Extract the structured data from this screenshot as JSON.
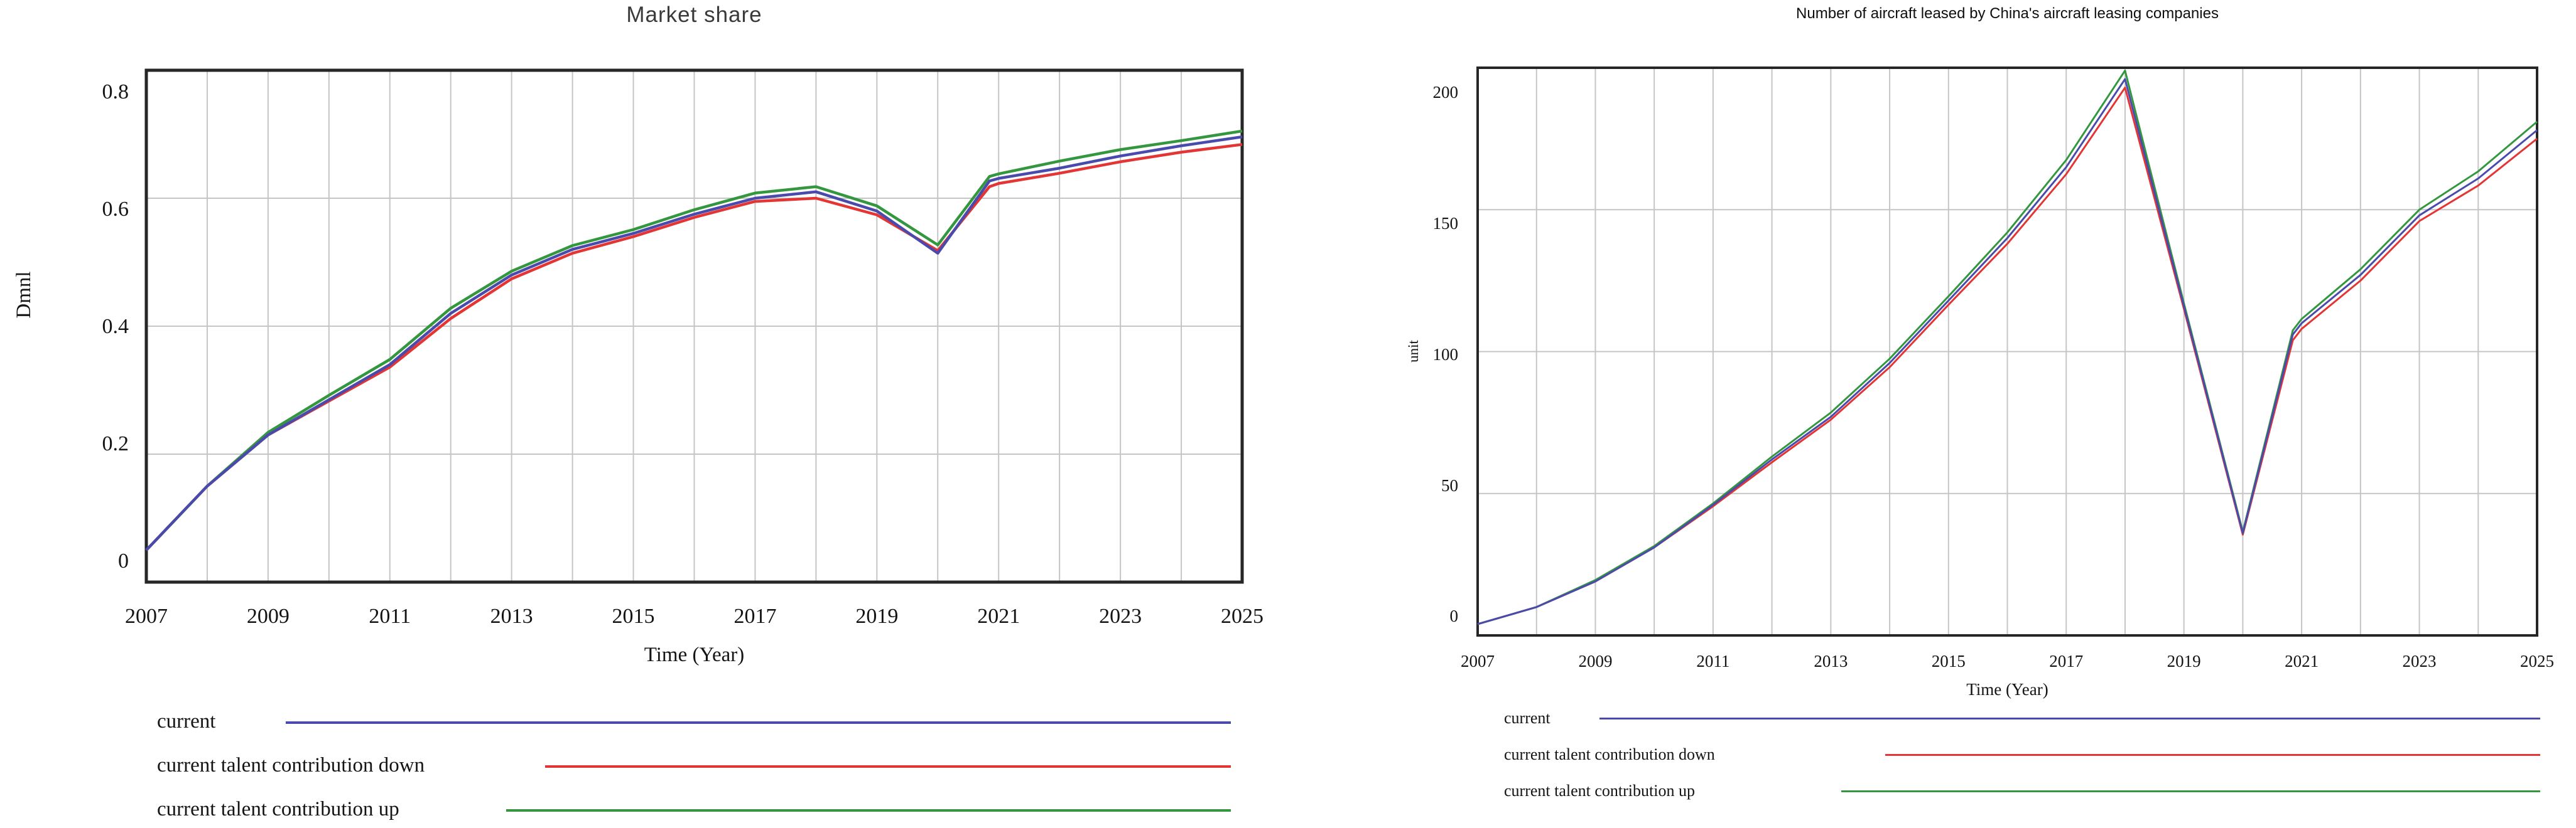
{
  "chart_data": [
    {
      "type": "line",
      "title": "Market share",
      "xlabel": "Time (Year)",
      "ylabel": "Dmnl",
      "xlim": [
        2007,
        2025
      ],
      "ylim": [
        0,
        0.8
      ],
      "grid": true,
      "x_grid_interval_years": 1,
      "legend_position": "below-left",
      "xticks": [
        2007,
        2009,
        2011,
        2013,
        2015,
        2017,
        2019,
        2021,
        2023,
        2025
      ],
      "yticks": [
        0,
        0.2,
        0.4,
        0.6,
        0.8
      ],
      "ytick_labels": [
        "0",
        "0.2",
        "0.4",
        "0.6",
        "0.8"
      ],
      "x": [
        2007,
        2008,
        2009,
        2010,
        2011,
        2012,
        2013,
        2014,
        2015,
        2016,
        2017,
        2018,
        2019,
        2020,
        2020.85,
        2021,
        2022,
        2023,
        2024,
        2025
      ],
      "series": [
        {
          "name": "current",
          "color": "#4a4aad",
          "values": [
            0.05,
            0.15,
            0.23,
            0.285,
            0.34,
            0.42,
            0.48,
            0.52,
            0.545,
            0.575,
            0.6,
            0.61,
            0.58,
            0.514,
            0.627,
            0.631,
            0.647,
            0.666,
            0.682,
            0.696
          ]
        },
        {
          "name": "current talent contribution down",
          "color": "#e43535",
          "values": [
            0.05,
            0.15,
            0.23,
            0.283,
            0.336,
            0.412,
            0.474,
            0.514,
            0.54,
            0.57,
            0.595,
            0.6,
            0.574,
            0.518,
            0.618,
            0.623,
            0.639,
            0.657,
            0.672,
            0.684
          ]
        },
        {
          "name": "current talent contribution up",
          "color": "#34973f",
          "values": [
            0.05,
            0.15,
            0.234,
            0.292,
            0.348,
            0.428,
            0.486,
            0.526,
            0.551,
            0.582,
            0.608,
            0.618,
            0.588,
            0.527,
            0.634,
            0.638,
            0.658,
            0.676,
            0.69,
            0.705
          ]
        }
      ]
    },
    {
      "type": "line",
      "title": "Number of aircraft leased by China's aircraft leasing companies",
      "xlabel": "Time (Year)",
      "ylabel": "unit",
      "xlim": [
        2007,
        2025
      ],
      "ylim": [
        0,
        200
      ],
      "grid": true,
      "x_grid_interval_years": 1,
      "legend_position": "below-left",
      "xticks": [
        2007,
        2009,
        2011,
        2013,
        2015,
        2017,
        2019,
        2021,
        2023,
        2025
      ],
      "yticks": [
        0,
        50,
        100,
        150,
        200
      ],
      "ytick_labels": [
        "0",
        "50",
        "100",
        "150",
        "200"
      ],
      "x": [
        2007,
        2008,
        2009,
        2010,
        2011,
        2012,
        2013,
        2014,
        2015,
        2016,
        2017,
        2018,
        2019,
        2020,
        2020.85,
        2021,
        2022,
        2023,
        2024,
        2025
      ],
      "series": [
        {
          "name": "current",
          "color": "#4a4aad",
          "values": [
            4,
            10,
            19,
            31,
            46,
            62,
            77,
            96,
            118,
            140,
            165,
            196,
            116,
            36,
            106,
            110,
            127,
            148,
            161,
            178
          ]
        },
        {
          "name": "current talent contribution down",
          "color": "#e43535",
          "values": [
            4,
            10,
            19,
            31,
            45.5,
            61,
            76,
            94.5,
            116.5,
            138,
            162.5,
            193,
            115,
            35.5,
            104,
            108,
            125,
            146,
            158.5,
            175
          ]
        },
        {
          "name": "current talent contribution up",
          "color": "#34973f",
          "values": [
            4,
            10,
            19.5,
            31.5,
            46.5,
            63,
            78.5,
            97.5,
            119.5,
            142,
            167.5,
            199,
            117,
            36.5,
            107.5,
            111.5,
            129,
            150,
            163.5,
            181
          ]
        }
      ]
    }
  ]
}
